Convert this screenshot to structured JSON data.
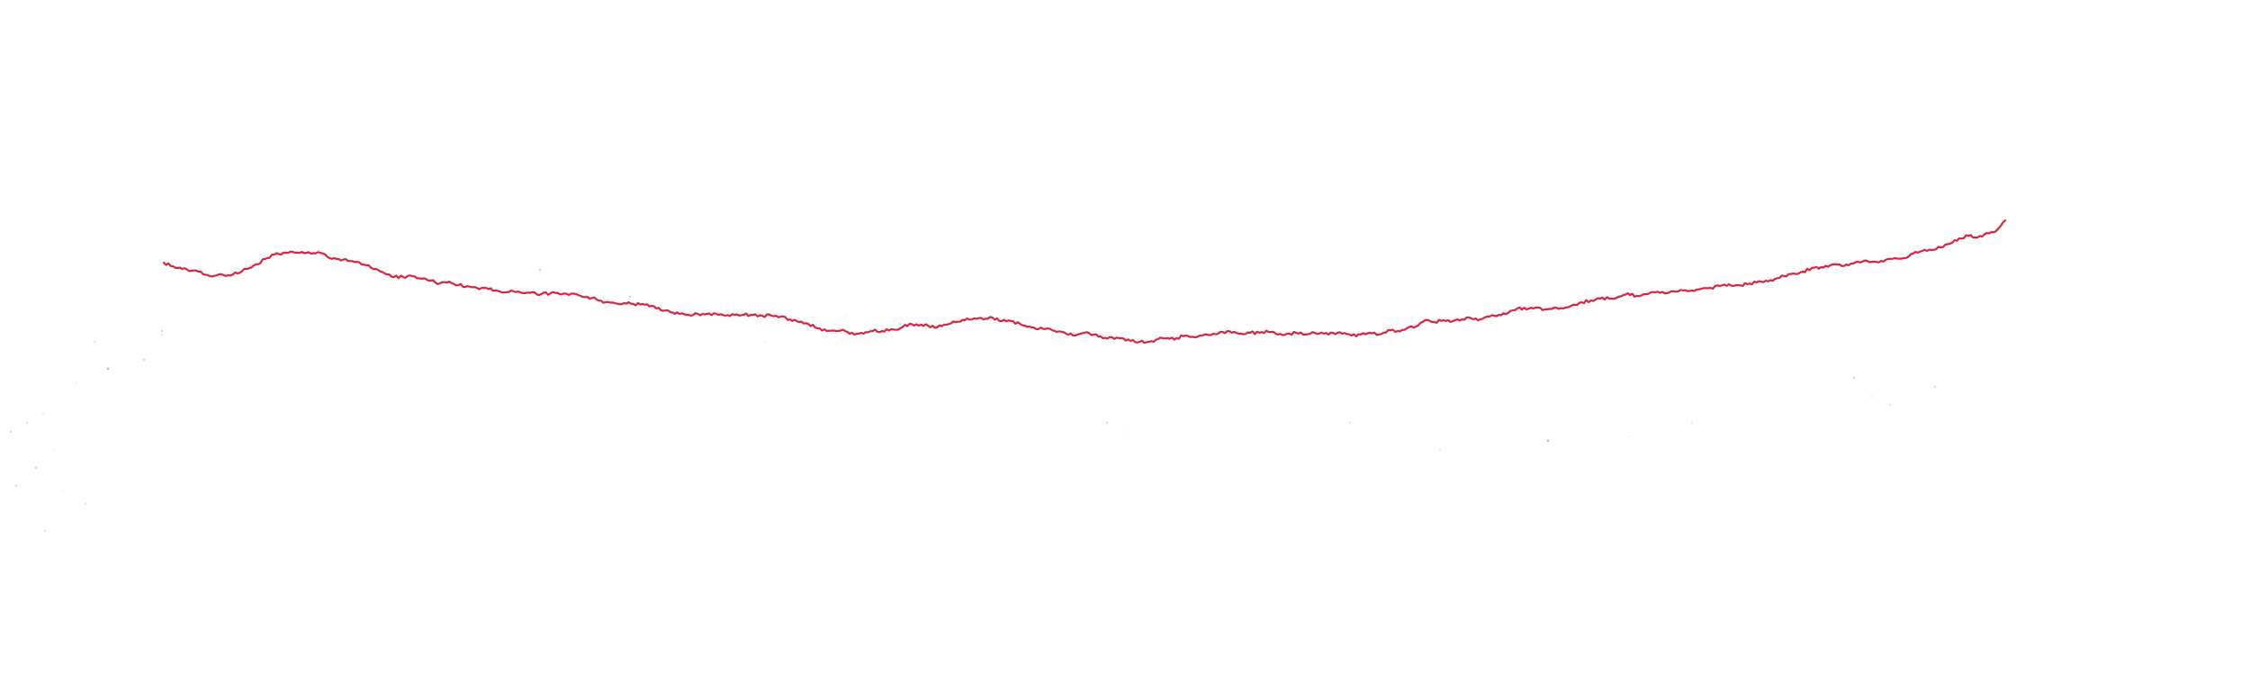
{
  "chart_data": {
    "type": "line",
    "title": "",
    "xlabel": "",
    "ylabel": "",
    "axes_visible": false,
    "grid": false,
    "legend": "none",
    "xlim": [
      0,
      1000
    ],
    "ylim": [
      0,
      310
    ],
    "series": [
      {
        "color": "#d8243f",
        "x": [
          0,
          5,
          10,
          15,
          20,
          25,
          30,
          35,
          40,
          45,
          50,
          55,
          60,
          65,
          70,
          75,
          80,
          85,
          90,
          95,
          100,
          105,
          110,
          115,
          120,
          125,
          130,
          135,
          140,
          145,
          150,
          155,
          160,
          165,
          170,
          175,
          180,
          185,
          190,
          195,
          200,
          205,
          210,
          215,
          220,
          225,
          230,
          235,
          240,
          245,
          250,
          255,
          260,
          265,
          270,
          275,
          280,
          285,
          290,
          295,
          300,
          305,
          310,
          315,
          320,
          325,
          330,
          335,
          340,
          345,
          350,
          355,
          360,
          365,
          370,
          375,
          380,
          385,
          390,
          395,
          400,
          405,
          410,
          415,
          420,
          425,
          430,
          435,
          440,
          445,
          450,
          455,
          460,
          465,
          470,
          475,
          480,
          485,
          490,
          495,
          500,
          505,
          510,
          515,
          520,
          525,
          530,
          535,
          540,
          545,
          550,
          555,
          560,
          565,
          570,
          575,
          580,
          585,
          590,
          595,
          600,
          605,
          610,
          615,
          620,
          625,
          630,
          635,
          640,
          645,
          650,
          655,
          660,
          665,
          670,
          675,
          680,
          685,
          690,
          695,
          700,
          705,
          710,
          715,
          720,
          725,
          730,
          735,
          740,
          745,
          750,
          755,
          760,
          765,
          770,
          775,
          780,
          785,
          790,
          795,
          800,
          805,
          810,
          815,
          820,
          825,
          830,
          835,
          840,
          845,
          850,
          855,
          860,
          865,
          870,
          875,
          880,
          885,
          890,
          895,
          900,
          905,
          910,
          915,
          920,
          925,
          930,
          935,
          940,
          945,
          950,
          955,
          960,
          965,
          970,
          975,
          980,
          985,
          990,
          995,
          1000
        ],
        "y": [
          228,
          224,
          221,
          219,
          218,
          213,
          215,
          214,
          216,
          221,
          226,
          232,
          237,
          239,
          240,
          240,
          238,
          239,
          233,
          232,
          230,
          229,
          225,
          221,
          216,
          212,
          212,
          213,
          210,
          208,
          205,
          207,
          203,
          202,
          200,
          200,
          197,
          195,
          196,
          194,
          195,
          193,
          194,
          193,
          192,
          192,
          190,
          187,
          184,
          183,
          183,
          182,
          182,
          180,
          175,
          173,
          171,
          170,
          171,
          171,
          171,
          169,
          170,
          170,
          170,
          169,
          169,
          168,
          165,
          162,
          160,
          155,
          152,
          152,
          152,
          148,
          149,
          152,
          152,
          154,
          155,
          160,
          158,
          158,
          156,
          159,
          162,
          164,
          166,
          165,
          167,
          163,
          163,
          160,
          157,
          154,
          155,
          151,
          149,
          147,
          150,
          148,
          144,
          145,
          144,
          141,
          140,
          140,
          143,
          144,
          144,
          147,
          145,
          148,
          149,
          151,
          150,
          149,
          150,
          150,
          151,
          148,
          149,
          150,
          148,
          150,
          149,
          150,
          149,
          147,
          148,
          150,
          148,
          153,
          152,
          155,
          157,
          164,
          162,
          164,
          163,
          165,
          166,
          165,
          168,
          170,
          172,
          177,
          176,
          178,
          176,
          178,
          177,
          181,
          184,
          186,
          188,
          188,
          190,
          194,
          191,
          193,
          195,
          194,
          196,
          197,
          197,
          199,
          200,
          202,
          204,
          203,
          204,
          206,
          208,
          210,
          213,
          216,
          218,
          222,
          223,
          225,
          226,
          225,
          229,
          230,
          229,
          231,
          233,
          233,
          238,
          241,
          242,
          245,
          249,
          255,
          258,
          256,
          261,
          263,
          275
        ]
      }
    ]
  }
}
